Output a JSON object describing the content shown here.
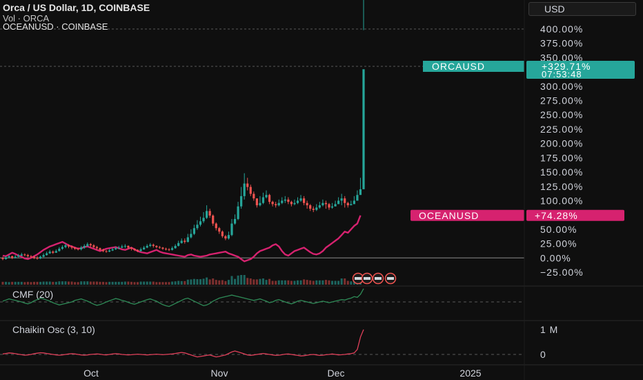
{
  "header": {
    "title": "Orca / US Dollar, 1D, COINBASE",
    "volume_label": "Vol · ORCA",
    "compare_label": "OCEANUSD · COINBASE"
  },
  "currency_button": "USD",
  "colors": {
    "background": "#0f0f0f",
    "up": "#26a69a",
    "down": "#ef5350",
    "ocean_line": "#d6226f",
    "cmf_line": "#2e8b57",
    "chaikin_line": "#e0405a",
    "orca_tag": "#26a69a",
    "ocean_tag": "#d6226f"
  },
  "chart_data": [
    {
      "type": "line",
      "title": "Orca / US Dollar, 1D, COINBASE",
      "scale": "percent",
      "y_ticks": [
        "400.00%",
        "375.00%",
        "350.00%",
        "300.00%",
        "275.00%",
        "250.00%",
        "225.00%",
        "200.00%",
        "175.00%",
        "150.00%",
        "125.00%",
        "100.00%",
        "75.00%",
        "50.00%",
        "25.00%",
        "0.00%",
        "−25.00%"
      ],
      "ylim": [
        -25,
        400
      ],
      "x_tick_labels": [
        "Oct",
        "Nov",
        "Dec",
        "2025"
      ],
      "series": [
        {
          "name": "ORCAUSD",
          "style": "candlestick",
          "last_label": "+329.71%",
          "countdown": "07:53:48",
          "closes": [
            -2,
            1,
            3,
            0,
            2,
            4,
            6,
            5,
            3,
            2,
            0,
            -1,
            2,
            5,
            8,
            11,
            9,
            12,
            16,
            19,
            22,
            20,
            18,
            16,
            15,
            18,
            21,
            24,
            22,
            19,
            17,
            14,
            12,
            11,
            13,
            15,
            17,
            18,
            20,
            21,
            18,
            16,
            14,
            12,
            15,
            18,
            21,
            23,
            21,
            19,
            18,
            16,
            15,
            14,
            17,
            21,
            26,
            30,
            28,
            36,
            42,
            52,
            58,
            64,
            70,
            82,
            74,
            60,
            52,
            46,
            38,
            34,
            40,
            60,
            68,
            90,
            108,
            130,
            124,
            112,
            104,
            92,
            96,
            106,
            110,
            98,
            94,
            92,
            96,
            100,
            102,
            98,
            94,
            96,
            100,
            104,
            96,
            92,
            86,
            84,
            88,
            92,
            96,
            94,
            88,
            90,
            94,
            100,
            104,
            96,
            92,
            94,
            100,
            110,
            120,
            329.71
          ],
          "opens": [
            0,
            -2,
            1,
            3,
            0,
            2,
            4,
            6,
            5,
            3,
            2,
            0,
            -1,
            2,
            5,
            8,
            11,
            9,
            12,
            16,
            19,
            22,
            20,
            18,
            16,
            15,
            18,
            21,
            24,
            22,
            19,
            17,
            14,
            12,
            11,
            13,
            15,
            17,
            18,
            20,
            21,
            18,
            16,
            14,
            12,
            15,
            18,
            21,
            23,
            21,
            19,
            18,
            16,
            15,
            14,
            17,
            21,
            26,
            30,
            28,
            36,
            42,
            52,
            58,
            64,
            70,
            82,
            74,
            60,
            52,
            46,
            38,
            34,
            40,
            60,
            68,
            90,
            108,
            130,
            124,
            112,
            104,
            92,
            96,
            106,
            110,
            98,
            94,
            92,
            96,
            100,
            102,
            98,
            94,
            96,
            100,
            104,
            96,
            92,
            86,
            84,
            88,
            92,
            96,
            94,
            88,
            90,
            94,
            100,
            104,
            96,
            92,
            94,
            100,
            110,
            120
          ],
          "highs": [
            2,
            3,
            5,
            4,
            5,
            7,
            9,
            8,
            7,
            5,
            4,
            3,
            4,
            8,
            11,
            14,
            13,
            15,
            19,
            22,
            25,
            24,
            22,
            19,
            18,
            21,
            24,
            27,
            26,
            24,
            21,
            18,
            16,
            14,
            16,
            18,
            20,
            21,
            23,
            24,
            22,
            19,
            17,
            15,
            18,
            21,
            24,
            26,
            25,
            22,
            21,
            19,
            18,
            17,
            20,
            24,
            30,
            34,
            34,
            42,
            50,
            58,
            66,
            72,
            80,
            92,
            86,
            76,
            62,
            54,
            48,
            40,
            46,
            68,
            76,
            98,
            124,
            148,
            140,
            128,
            116,
            104,
            108,
            114,
            118,
            112,
            100,
            98,
            102,
            106,
            108,
            106,
            100,
            102,
            106,
            110,
            108,
            100,
            94,
            90,
            94,
            98,
            102,
            100,
            96,
            96,
            100,
            106,
            112,
            108,
            98,
            100,
            108,
            118,
            140,
            398
          ],
          "lows": [
            -4,
            -3,
            0,
            -2,
            -1,
            1,
            3,
            3,
            1,
            0,
            -2,
            -3,
            -2,
            1,
            4,
            7,
            7,
            9,
            11,
            14,
            17,
            17,
            15,
            14,
            13,
            13,
            16,
            19,
            19,
            17,
            14,
            12,
            10,
            9,
            10,
            12,
            14,
            15,
            17,
            17,
            15,
            13,
            12,
            10,
            11,
            14,
            17,
            19,
            18,
            17,
            16,
            14,
            13,
            12,
            13,
            16,
            20,
            25,
            25,
            27,
            34,
            40,
            49,
            55,
            61,
            68,
            70,
            56,
            48,
            42,
            35,
            31,
            32,
            38,
            58,
            66,
            86,
            102,
            118,
            108,
            100,
            88,
            90,
            94,
            104,
            94,
            90,
            88,
            90,
            94,
            96,
            94,
            90,
            92,
            94,
            98,
            92,
            86,
            82,
            80,
            82,
            86,
            90,
            86,
            84,
            86,
            90,
            96,
            92,
            88,
            88,
            92,
            98,
            106,
            118
          ]
        },
        {
          "name": "OCEANUSD",
          "style": "line",
          "last_label": "+74.28%",
          "values": [
            4,
            3,
            6,
            9,
            7,
            4,
            2,
            -1,
            -2,
            0,
            3,
            6,
            10,
            14,
            17,
            20,
            22,
            24,
            26,
            28,
            25,
            22,
            20,
            18,
            16,
            17,
            19,
            20,
            18,
            16,
            14,
            12,
            14,
            16,
            17,
            18,
            19,
            17,
            15,
            14,
            16,
            18,
            15,
            12,
            10,
            9,
            8,
            10,
            12,
            14,
            11,
            9,
            8,
            7,
            6,
            5,
            4,
            3,
            2,
            5,
            6,
            4,
            3,
            2,
            3,
            4,
            6,
            7,
            8,
            9,
            10,
            11,
            8,
            6,
            4,
            2,
            -2,
            -6,
            -4,
            -2,
            2,
            8,
            12,
            14,
            16,
            18,
            22,
            24,
            20,
            12,
            6,
            4,
            8,
            12,
            14,
            16,
            18,
            14,
            10,
            7,
            6,
            8,
            12,
            18,
            22,
            26,
            30,
            34,
            40,
            46,
            44,
            50,
            56,
            60,
            74.28
          ]
        }
      ]
    },
    {
      "type": "bar",
      "title": "Vol · ORCA",
      "volume_colors_up": true
    },
    {
      "type": "line",
      "title": "CMF (20)",
      "series": [
        {
          "name": "CMF (20)",
          "values": [
            0.02,
            0.05,
            0.08,
            0.06,
            0.04,
            0.02,
            0.0,
            -0.03,
            -0.05,
            -0.02,
            0.03,
            0.06,
            0.1,
            0.08,
            0.05,
            0.02,
            -0.02,
            -0.05,
            -0.08,
            -0.06,
            -0.04,
            -0.02,
            0.0,
            0.04,
            0.06,
            0.08,
            0.05,
            0.02,
            -0.02,
            -0.06,
            -0.09,
            -0.07,
            -0.04,
            0.0,
            0.03,
            0.06,
            0.09,
            0.07,
            0.04,
            0.02,
            -0.01,
            -0.04,
            -0.06,
            -0.03,
            0.0,
            0.03,
            0.06,
            0.08,
            0.05,
            0.02,
            -0.03,
            -0.07,
            -0.1,
            -0.12,
            -0.08,
            -0.04,
            0.0,
            0.04,
            0.08,
            0.1,
            0.06,
            0.02,
            -0.02,
            -0.06,
            -0.1,
            -0.08,
            -0.04,
            0.02,
            0.06,
            0.1,
            0.12,
            0.14,
            0.16,
            0.18,
            0.16,
            0.14,
            0.12,
            0.1,
            0.08,
            0.06,
            0.04,
            0.06,
            0.08,
            0.05,
            0.02,
            -0.02,
            0.0,
            0.04,
            0.06,
            0.03,
            0.0,
            -0.03,
            -0.05,
            -0.02,
            0.02,
            0.04,
            0.02,
            0.0,
            -0.02,
            -0.04,
            -0.02,
            0.0,
            0.02,
            0.0,
            -0.02,
            0.0,
            0.02,
            0.04,
            0.06,
            0.05,
            0.08,
            0.1,
            0.14,
            0.12,
            0.2,
            0.35
          ]
        }
      ]
    },
    {
      "type": "line",
      "title": "Chaikin Osc (3, 10)",
      "y_ticks": [
        "1 M",
        "0"
      ],
      "series": [
        {
          "name": "Chaikin Osc (3, 10)",
          "values": [
            0.02,
            0.04,
            0.06,
            0.05,
            0.03,
            0.01,
            -0.01,
            -0.03,
            -0.02,
            0.0,
            0.03,
            0.05,
            0.07,
            0.06,
            0.04,
            0.02,
            0.0,
            -0.02,
            -0.03,
            -0.02,
            0.0,
            0.02,
            0.03,
            0.02,
            0.0,
            -0.02,
            -0.03,
            -0.02,
            0.0,
            0.01,
            0.02,
            0.01,
            -0.01,
            -0.02,
            0.0,
            0.02,
            0.03,
            0.02,
            0.0,
            -0.01,
            -0.02,
            -0.01,
            0.0,
            0.01,
            0.0,
            -0.01,
            -0.02,
            -0.01,
            0.0,
            0.01,
            0.0,
            -0.01,
            0.0,
            0.01,
            0.02,
            0.04,
            0.06,
            0.08,
            0.06,
            0.02,
            -0.02,
            -0.06,
            -0.1,
            -0.08,
            -0.06,
            -0.04,
            -0.02,
            -0.06,
            -0.1,
            -0.08,
            -0.05,
            -0.02,
            0.04,
            0.1,
            0.14,
            0.1,
            0.06,
            0.02,
            -0.02,
            -0.04,
            -0.02,
            0.0,
            0.02,
            0.04,
            0.02,
            0.0,
            -0.02,
            -0.04,
            -0.03,
            -0.01,
            0.01,
            0.02,
            0.0,
            -0.02,
            -0.04,
            -0.06,
            -0.05,
            -0.03,
            -0.01,
            0.0,
            -0.02,
            -0.04,
            -0.03,
            -0.01,
            0.0,
            0.02,
            0.0,
            -0.02,
            -0.01,
            0.0,
            0.02,
            0.03,
            0.06,
            0.2,
            0.7,
            1.0
          ]
        }
      ]
    }
  ]
}
